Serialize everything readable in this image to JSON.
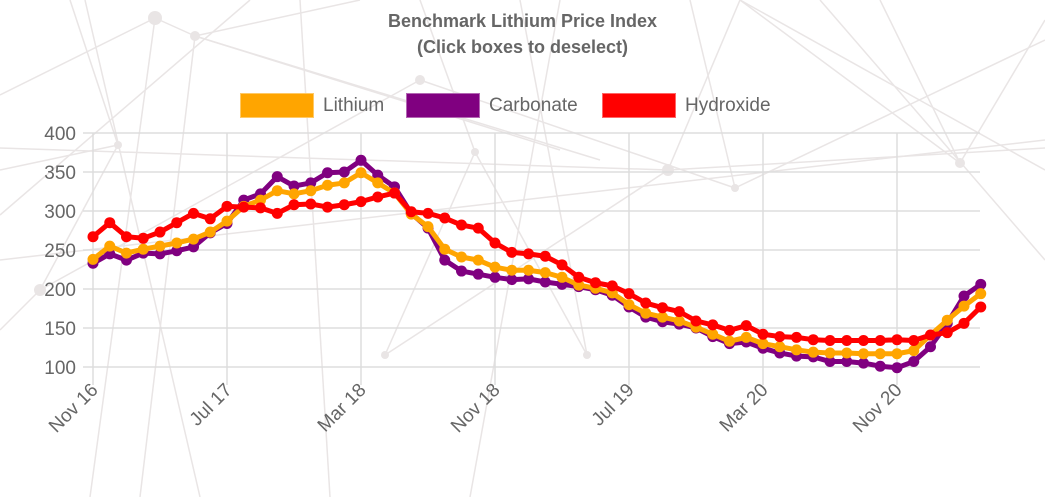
{
  "title_line1": "Benchmark Lithium Price Index",
  "title_line2": "(Click boxes to deselect)",
  "legend": [
    {
      "label": "Lithium",
      "color": "#FFA500"
    },
    {
      "label": "Carbonate",
      "color": "#800080"
    },
    {
      "label": "Hydroxide",
      "color": "#FF0000"
    }
  ],
  "chart_data": {
    "type": "line",
    "title": "Benchmark Lithium Price Index",
    "subtitle": "(Click boxes to deselect)",
    "xlabel": "",
    "ylabel": "",
    "ylim": [
      100,
      400
    ],
    "yticks": [
      100,
      150,
      200,
      250,
      300,
      350,
      400
    ],
    "grid": true,
    "legend_position": "top",
    "x_start": "Nov 16",
    "x_end": "Apr 21",
    "x_interval": "monthly",
    "xtick_labels": [
      "Nov 16",
      "Jul 17",
      "Mar 18",
      "Nov 18",
      "Jul 19",
      "Mar 20",
      "Nov 20"
    ],
    "xtick_every": 8,
    "series": [
      {
        "name": "Carbonate",
        "color": "#800080",
        "values": [
          233,
          245,
          237,
          246,
          245,
          249,
          254,
          272,
          284,
          314,
          322,
          344,
          332,
          336,
          349,
          350,
          365,
          346,
          331,
          297,
          278,
          237,
          223,
          219,
          215,
          212,
          213,
          209,
          206,
          203,
          199,
          192,
          177,
          164,
          158,
          155,
          150,
          139,
          130,
          132,
          124,
          118,
          114,
          113,
          107,
          107,
          105,
          101,
          99,
          107,
          126,
          156,
          191,
          206
        ]
      },
      {
        "name": "Lithium",
        "color": "#FFA500",
        "values": [
          238,
          255,
          246,
          251,
          255,
          259,
          264,
          273,
          287,
          306,
          314,
          326,
          322,
          326,
          333,
          336,
          349,
          336,
          323,
          296,
          280,
          251,
          241,
          237,
          228,
          224,
          224,
          221,
          215,
          205,
          201,
          195,
          180,
          169,
          164,
          159,
          151,
          142,
          133,
          138,
          130,
          126,
          122,
          119,
          118,
          118,
          117,
          117,
          117,
          121,
          141,
          160,
          178,
          194
        ]
      },
      {
        "name": "Hydroxide",
        "color": "#FF0000",
        "values": [
          267,
          285,
          267,
          265,
          273,
          285,
          297,
          290,
          306,
          305,
          304,
          297,
          308,
          309,
          305,
          308,
          312,
          318,
          323,
          299,
          297,
          291,
          282,
          278,
          259,
          247,
          245,
          242,
          231,
          215,
          208,
          204,
          194,
          182,
          176,
          171,
          159,
          154,
          147,
          153,
          142,
          139,
          138,
          135,
          134,
          134,
          134,
          134,
          135,
          134,
          141,
          144,
          156,
          177
        ]
      }
    ]
  }
}
